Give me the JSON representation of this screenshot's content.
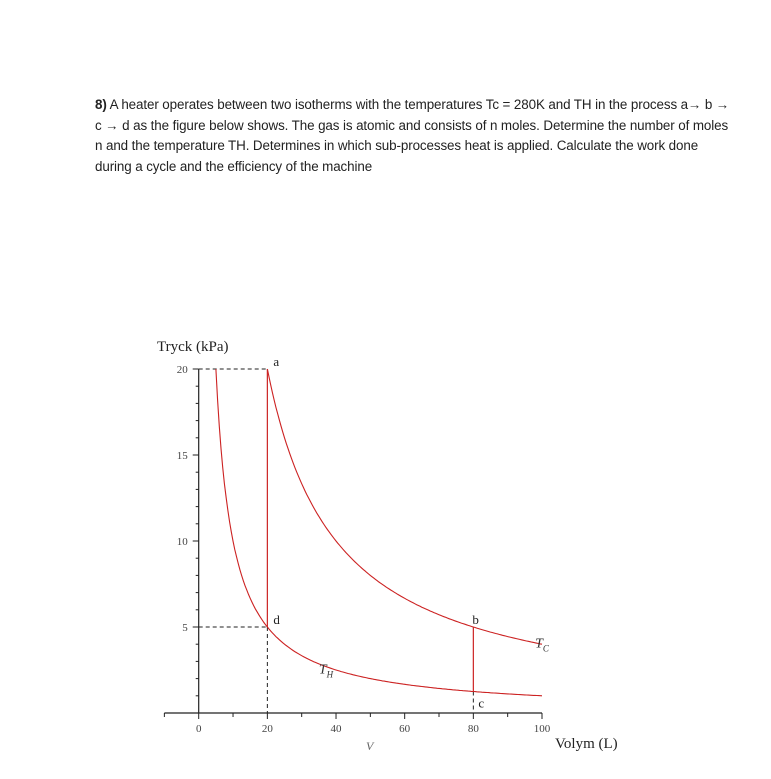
{
  "problem": {
    "number": "8)",
    "text": "A heater operates between two isotherms with the temperatures Tc = 280K and TH in the process a→ b → c → d as the figure below shows. The gas is atomic and consists of n moles. Determine the number of moles n and the temperature TH. Determines in which sub-processes heat is applied. Calculate the work done during a cycle and the efficiency of the machine"
  },
  "chart_data": {
    "type": "line",
    "title": "",
    "ylabel": "Tryck (kPa)",
    "xlabel": "Volym (L)",
    "xvar_label": "V",
    "xlim": [
      -10,
      100
    ],
    "ylim": [
      0,
      20
    ],
    "xticks": [
      0,
      20,
      40,
      60,
      80,
      100
    ],
    "yticks": [
      5,
      10,
      15,
      20
    ],
    "grid": false,
    "color": "#cc2222",
    "series": [
      {
        "name": "Tc",
        "label_main": "T",
        "label_sub": "C",
        "equation": "P*V = 400",
        "v_range": [
          20,
          100
        ]
      },
      {
        "name": "TH",
        "label_main": "T",
        "label_sub": "H",
        "equation": "P*V = 100",
        "v_range": [
          5,
          100
        ]
      }
    ],
    "points": [
      {
        "label": "a",
        "V": 20,
        "P": 20
      },
      {
        "label": "b",
        "V": 80,
        "P": 5
      },
      {
        "label": "c",
        "V": 80,
        "P": 1.25
      },
      {
        "label": "d",
        "V": 20,
        "P": 5
      }
    ],
    "vertical_segments": [
      {
        "from": "a",
        "to": "d"
      },
      {
        "from": "b",
        "to": "c"
      }
    ]
  }
}
